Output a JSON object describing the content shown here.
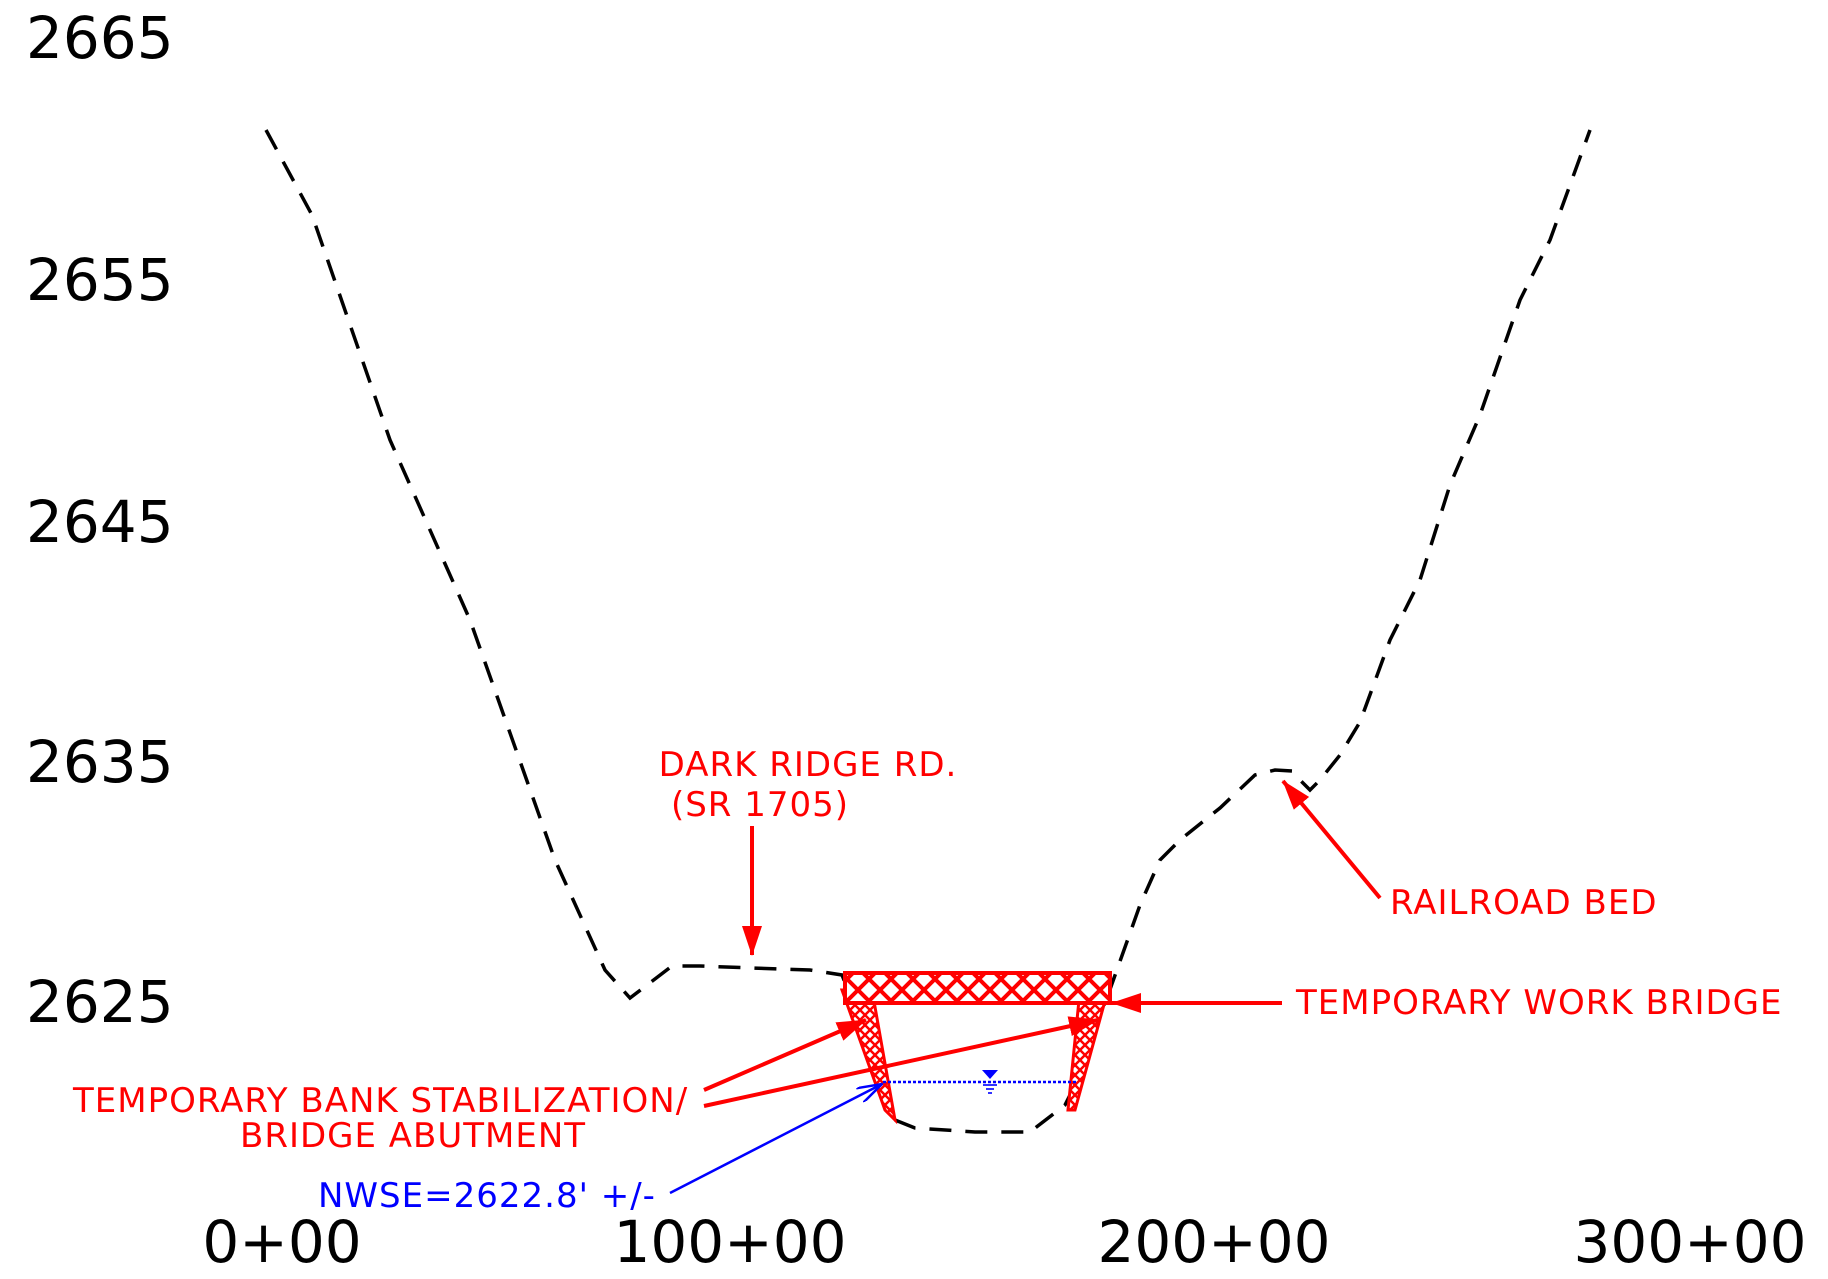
{
  "colors": {
    "ground": "#000000",
    "annotation": "#ff0000",
    "water": "#0000ff"
  },
  "y_axis": {
    "labels": [
      "2665",
      "2655",
      "2645",
      "2635",
      "2625"
    ]
  },
  "x_axis": {
    "labels": [
      "0+00",
      "100+00",
      "200+00",
      "300+00"
    ]
  },
  "callouts": {
    "road_line1": "DARK RIDGE RD.",
    "road_line2": "(SR 1705)",
    "railroad": "RAILROAD BED",
    "work_bridge": "TEMPORARY WORK BRIDGE",
    "bank_line1": "TEMPORARY BANK STABILIZATION/",
    "bank_line2": "BRIDGE ABUTMENT",
    "water_level": "NWSE=2622.8' +/-"
  },
  "icons": {
    "water_surface": "water-surface-symbol-icon"
  }
}
